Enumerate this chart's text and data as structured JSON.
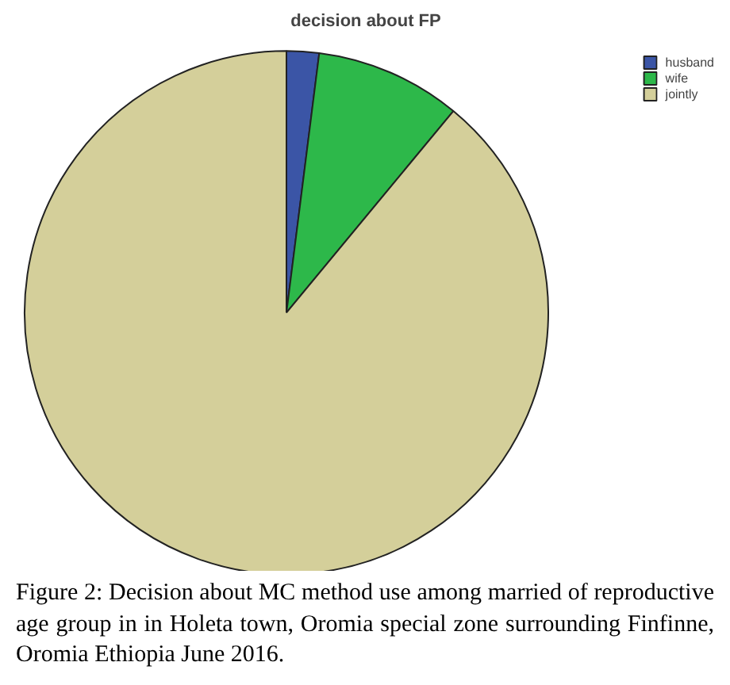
{
  "chart_data": {
    "type": "pie",
    "title": "decision about FP",
    "categories": [
      "husband",
      "wife",
      "jointly"
    ],
    "values": [
      2,
      9,
      89
    ],
    "colors": [
      "#3b55a6",
      "#2db84a",
      "#d4cf9a"
    ],
    "legend": "top right",
    "annotations": [
      "Figure 2: Decision about MC method use among married of reproductive age group in in Holeta town, Oromia special zone surrounding Finfinne, Oromia Ethiopia June 2016."
    ]
  }
}
